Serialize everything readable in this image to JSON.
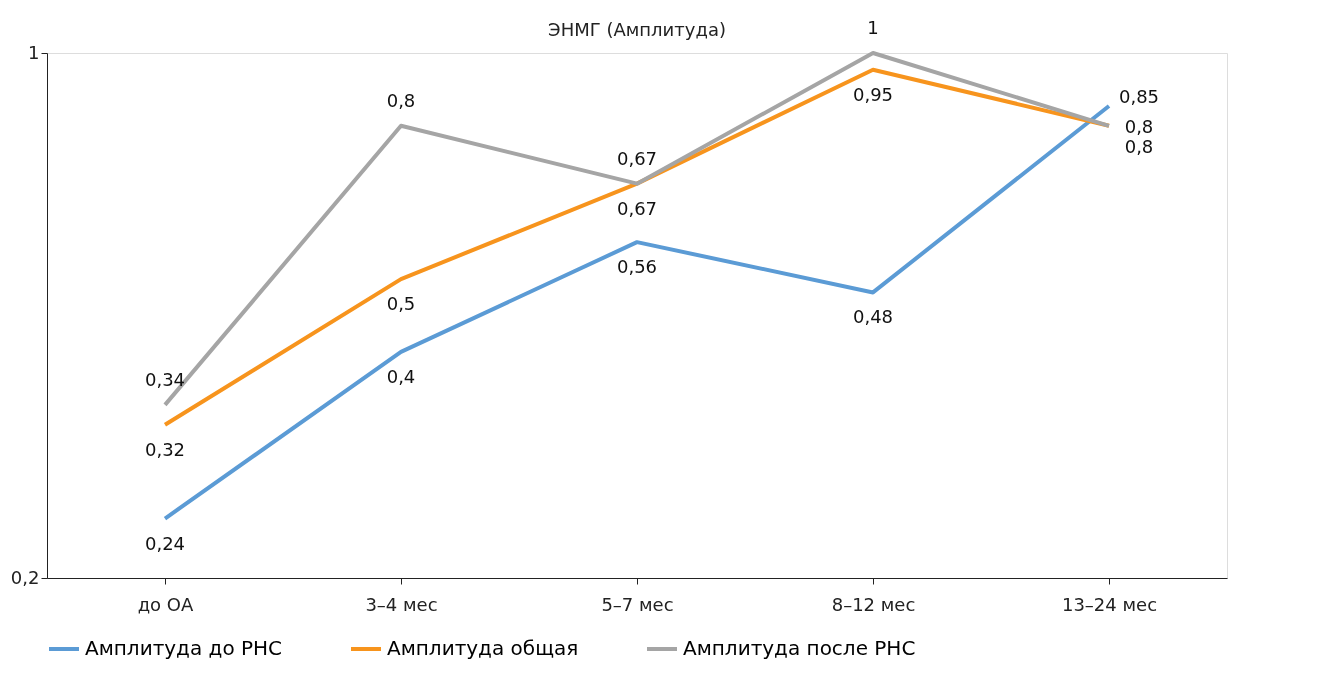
{
  "chart_data": {
    "type": "line",
    "title": "ЭНМГ (Амплитуда)",
    "categories": [
      "до ОА",
      "3–4 мес",
      "5–7 мес",
      "8–12 мес",
      "13–24 мес"
    ],
    "series": [
      {
        "name": "Амплитуда до РНС",
        "color": "#5b9bd5",
        "values": [
          0.24,
          0.4,
          0.56,
          0.48,
          0.85
        ],
        "value_labels": [
          "0,24",
          "0,4",
          "0,56",
          "0,48",
          "0,85"
        ]
      },
      {
        "name": "Амплитуда общая",
        "color": "#f7941d",
        "values": [
          0.32,
          0.5,
          0.67,
          0.95,
          0.8
        ],
        "value_labels": [
          "0,32",
          "0,5",
          "0,67",
          "0,95",
          "0,8"
        ]
      },
      {
        "name": "Амплитуда после РНС",
        "color": "#a5a5a5",
        "values": [
          0.34,
          0.8,
          0.67,
          1,
          0.8
        ],
        "value_labels": [
          "0,34",
          "0,8",
          "0,67",
          "1",
          "0,8"
        ]
      }
    ],
    "log": true,
    "ylim": [
      0.2,
      1
    ],
    "yticks": [
      {
        "value": 0.2,
        "label": "0,2"
      },
      {
        "value": 1,
        "label": "1"
      }
    ],
    "grid": false,
    "legend": "bottom",
    "marker": "none",
    "line_style": "solid"
  }
}
